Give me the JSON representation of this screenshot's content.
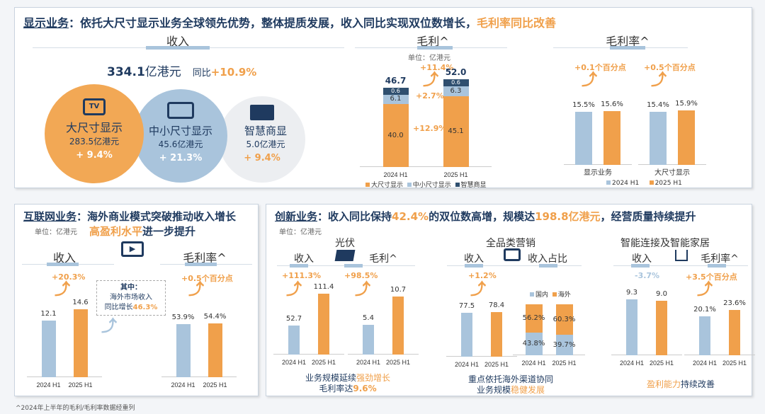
{
  "colors": {
    "blue": "#a9c4dc",
    "orange": "#f0a04b",
    "navy": "#1f3a5f"
  },
  "display": {
    "title_a": "显示业务",
    "title_b": "：依托大尺寸显示业务全球领先优势，整体提质发展，收入同比实现双位数增长，",
    "title_c": "毛利率同比改善",
    "revenue": {
      "header": "收入",
      "total": "334.1",
      "unit": "亿港元",
      "yoy_label": "同比",
      "yoy": "+10.9%",
      "segments": [
        {
          "icon": "tv-icon",
          "name": "大尺寸显示",
          "value": "283.5亿港元",
          "growth": "+ 9.4%"
        },
        {
          "icon": "tablet-icon",
          "name": "中小尺寸显示",
          "value": "45.6亿港元",
          "growth": "+ 21.3%"
        },
        {
          "icon": "commercial-display-icon",
          "name": "智慧商显",
          "value": "5.0亿港元",
          "growth": "+ 9.4%"
        }
      ]
    },
    "gp": {
      "header": "毛利^",
      "unit": "单位：亿港元",
      "total_growth": "+11.4%",
      "mid_growth": "+2.7%",
      "large_growth": "+12.9%",
      "legend": [
        "大尺寸显示",
        "中小尺寸显示",
        "智慧商显"
      ]
    },
    "gm": {
      "header": "毛利率^",
      "chg1": "+0.1个百分点",
      "chg2": "+0.5个百分点",
      "legend": [
        "2024 H1",
        "2025 H1"
      ]
    }
  },
  "internet": {
    "title_a": "互联网业务",
    "title_b": "：海外商业模式突破推动收入增长",
    "title_c": "高盈利水平",
    "title_d": "进一步提升",
    "unit": "单位：亿港元",
    "rev_header": "收入",
    "rev_chg": "+20.3%",
    "gm_header": "毛利率^",
    "gm_chg": "+0.5个百分点",
    "note_a": "其中：",
    "note_b": "海外市场收入",
    "note_c": "同比增长",
    "note_d": "46.3%"
  },
  "innovation": {
    "title_a": "创新业务",
    "title_b": "：收入同比保持",
    "title_c": "42.4%",
    "title_d": "的双位数高增，规模达",
    "title_e": "198.8亿港元",
    "title_f": "，经营质量持续提升",
    "unit": "单位：亿港元",
    "pv": {
      "name": "光伏",
      "rev": "收入",
      "gp": "毛利^",
      "rev_chg": "+111.3%",
      "gp_chg": "+98.5%",
      "cap_a": "业务规模延续",
      "cap_b": "强劲增长",
      "cap_c": "毛利率达",
      "cap_d": "9.6%"
    },
    "mkt": {
      "name": "全品类营销",
      "rev": "收入",
      "share": "收入占比",
      "rev_chg": "+1.2%",
      "legend": [
        "国内",
        "海外"
      ],
      "cap_a": "重点依托海外渠道协同",
      "cap_b": "业务规模",
      "cap_c": "稳健发展"
    },
    "home": {
      "name": "智能连接及智能家居",
      "rev": "收入",
      "gm": "毛利率^",
      "rev_chg": "-3.7%",
      "gm_chg": "+3.5个百分点",
      "cap_a": "盈利能力",
      "cap_b": "持续改善"
    }
  },
  "footnote": "^2024年上半年的毛利/毛利率数据经重列",
  "charts": {
    "gp": {
      "max": 54,
      "bars": [
        {
          "x": "2024 H1",
          "total": "46.7",
          "segments": [
            {
              "value": 40.0,
              "label": "40.0",
              "color": "#f0a04b"
            },
            {
              "value": 6.1,
              "label": "6.1",
              "color": "#a9c4dc"
            },
            {
              "value": 0.6,
              "label": "0.6",
              "color": "#2f4f6f"
            }
          ]
        },
        {
          "x": "2025 H1",
          "total": "52.0",
          "segments": [
            {
              "value": 45.1,
              "label": "45.1",
              "color": "#f0a04b"
            },
            {
              "value": 6.3,
              "label": "6.3",
              "color": "#a9c4dc"
            },
            {
              "value": 0.6,
              "label": "0.6",
              "color": "#2f4f6f"
            }
          ]
        }
      ]
    },
    "gm1": {
      "max": 19,
      "category": "显示业务",
      "bars": [
        {
          "value": 15.5,
          "label": "15.5%",
          "color": "#a9c4dc"
        },
        {
          "value": 15.6,
          "label": "15.6%",
          "color": "#f0a04b"
        }
      ]
    },
    "gm2": {
      "max": 19,
      "category": "大尺寸显示",
      "bars": [
        {
          "value": 15.4,
          "label": "15.4%",
          "color": "#a9c4dc"
        },
        {
          "value": 15.9,
          "label": "15.9%",
          "color": "#f0a04b"
        }
      ]
    },
    "net_rev": {
      "max": 17,
      "bars": [
        {
          "x": "2024 H1",
          "value": 12.1,
          "label": "12.1",
          "color": "#a9c4dc"
        },
        {
          "x": "2025 H1",
          "value": 14.6,
          "label": "14.6",
          "color": "#f0a04b"
        }
      ]
    },
    "net_gm": {
      "max": 80,
      "bars": [
        {
          "x": "2024 H1",
          "value": 53.9,
          "label": "53.9%",
          "color": "#a9c4dc"
        },
        {
          "x": "2025 H1",
          "value": 54.4,
          "label": "54.4%",
          "color": "#f0a04b"
        }
      ]
    },
    "pv_rev": {
      "max": 130,
      "bars": [
        {
          "x": "2024 H1",
          "value": 52.7,
          "label": "52.7",
          "color": "#a9c4dc"
        },
        {
          "x": "2025 H1",
          "value": 111.4,
          "label": "111.4",
          "color": "#f0a04b"
        }
      ]
    },
    "pv_gp": {
      "max": 13,
      "bars": [
        {
          "x": "2024 H1",
          "value": 5.4,
          "label": "5.4",
          "color": "#a9c4dc"
        },
        {
          "x": "2025 H1",
          "value": 10.7,
          "label": "10.7",
          "color": "#f0a04b"
        }
      ]
    },
    "mkt_rev": {
      "max": 125,
      "bars": [
        {
          "x": "2024 H1",
          "value": 77.5,
          "label": "77.5",
          "color": "#a9c4dc"
        },
        {
          "x": "2025 H1",
          "value": 78.4,
          "label": "78.4",
          "color": "#f0a04b"
        }
      ]
    },
    "mkt_share": {
      "max": 100,
      "bars": [
        {
          "x": "2024 H1",
          "segments": [
            {
              "value": 43.8,
              "label": "43.8%",
              "color": "#a9c4dc"
            },
            {
              "value": 56.2,
              "label": "56.2%",
              "color": "#f0a04b"
            }
          ]
        },
        {
          "x": "2025 H1",
          "segments": [
            {
              "value": 39.7,
              "label": "39.7%",
              "color": "#a9c4dc"
            },
            {
              "value": 60.3,
              "label": "60.3%",
              "color": "#f0a04b"
            }
          ]
        }
      ]
    },
    "home_rev": {
      "max": 11.5,
      "bars": [
        {
          "x": "2024 H1",
          "value": 9.3,
          "label": "9.3",
          "color": "#a9c4dc"
        },
        {
          "x": "2025 H1",
          "value": 9.0,
          "label": "9.0",
          "color": "#f0a04b"
        }
      ]
    },
    "home_gm": {
      "max": 36,
      "bars": [
        {
          "x": "2024 H1",
          "value": 20.1,
          "label": "20.1%",
          "color": "#a9c4dc"
        },
        {
          "x": "2025 H1",
          "value": 23.6,
          "label": "23.6%",
          "color": "#f0a04b"
        }
      ]
    }
  }
}
